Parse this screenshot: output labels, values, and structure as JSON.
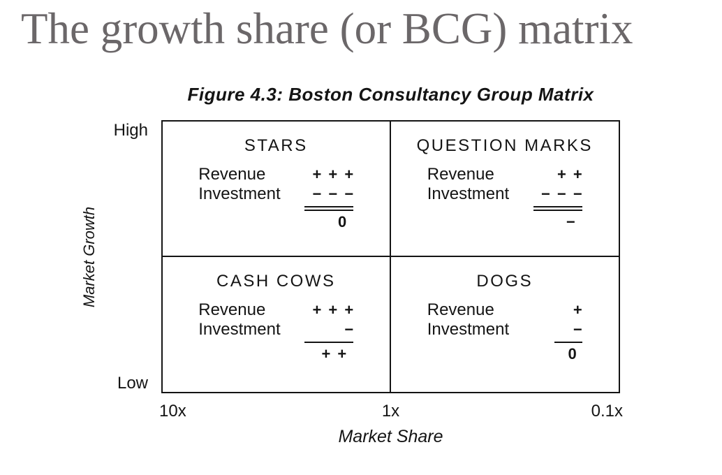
{
  "slide": {
    "title": "The growth share (or BCG) matrix"
  },
  "figure": {
    "caption": "Figure 4.3: Boston Consultancy Group Matrix",
    "y_axis": {
      "label": "Market Growth",
      "high": "High",
      "low": "Low"
    },
    "x_axis": {
      "label": "Market Share",
      "ticks": [
        "10x",
        "1x",
        "0.1x"
      ]
    },
    "quadrants": [
      {
        "name": "stars",
        "title": "STARS",
        "revenue_label": "Revenue",
        "revenue_value": "+ + +",
        "investment_label": "Investment",
        "investment_value": "− − −",
        "rule": "double",
        "net_value": "0"
      },
      {
        "name": "question-marks",
        "title": "QUESTION MARKS",
        "revenue_label": "Revenue",
        "revenue_value": "+ +",
        "investment_label": "Investment",
        "investment_value": "− − −",
        "rule": "double",
        "net_value": "−"
      },
      {
        "name": "cash-cows",
        "title": "CASH COWS",
        "revenue_label": "Revenue",
        "revenue_value": "+ + +",
        "investment_label": "Investment",
        "investment_value": "−",
        "rule": "single",
        "net_value": "+ +"
      },
      {
        "name": "dogs",
        "title": "DOGS",
        "revenue_label": "Revenue",
        "revenue_value": "+",
        "investment_label": "Investment",
        "investment_value": "−",
        "rule": "single",
        "net_value": "0"
      }
    ]
  },
  "colors": {
    "title_text": "#6b6769",
    "diagram_text": "#141414",
    "background": "#ffffff"
  }
}
